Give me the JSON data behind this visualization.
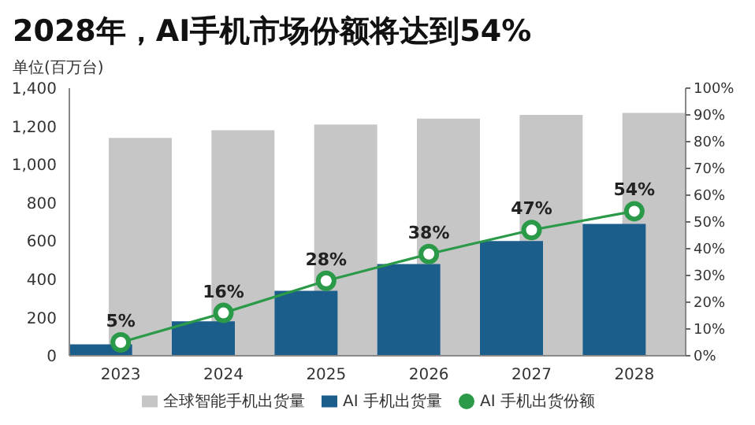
{
  "chart_data": {
    "type": "bar",
    "title": "2028年，AI手机市场份额将达到54%",
    "ylabel": "单位(百万台)",
    "categories": [
      "2023",
      "2024",
      "2025",
      "2026",
      "2027",
      "2028"
    ],
    "series": [
      {
        "name": "全球智能手机出货量",
        "color": "#c6c6c6",
        "values": [
          1140,
          1180,
          1210,
          1240,
          1260,
          1270
        ]
      },
      {
        "name": "AI 手机出货量",
        "color": "#1b5e8c",
        "values": [
          60,
          180,
          340,
          480,
          600,
          690
        ]
      },
      {
        "name": "AI 手机出货份额",
        "type": "line",
        "axis": "y2",
        "color": "#2a9a48",
        "marker": "circle",
        "values": [
          5,
          16,
          28,
          38,
          47,
          54
        ],
        "value_labels": [
          "5%",
          "16%",
          "28%",
          "38%",
          "47%",
          "54%"
        ]
      }
    ],
    "ylim": [
      0,
      1400
    ],
    "yticks": [
      0,
      200,
      400,
      600,
      800,
      {
        "value": 1000,
        "label": "1,000"
      },
      {
        "value": 1200,
        "label": "1,200"
      },
      {
        "value": 1400,
        "label": "1,400"
      }
    ],
    "y2lim": [
      0,
      100
    ],
    "y2ticks": [
      {
        "value": 0,
        "label": "0%"
      },
      {
        "value": 10,
        "label": "10%"
      },
      {
        "value": 20,
        "label": "20%"
      },
      {
        "value": 30,
        "label": "30%"
      },
      {
        "value": 40,
        "label": "40%"
      },
      {
        "value": 50,
        "label": "50%"
      },
      {
        "value": 60,
        "label": "60%"
      },
      {
        "value": 70,
        "label": "70%"
      },
      {
        "value": 80,
        "label": "80%"
      },
      {
        "value": 90,
        "label": "90%"
      },
      {
        "value": 100,
        "label": "100%"
      }
    ],
    "grid": false,
    "legend": "bottom"
  }
}
